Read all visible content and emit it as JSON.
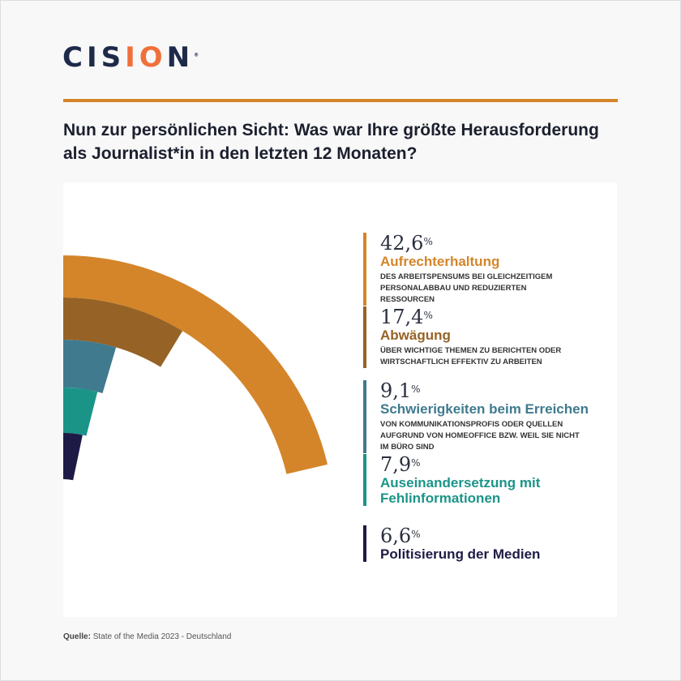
{
  "brand": {
    "logo": "CISION"
  },
  "title": "Nun zur persönlichen Sicht: Was war Ihre größte Herausforderung als Journalist*in in den letzten 12 Monaten?",
  "chart_data": {
    "type": "radial-bar",
    "scale_max_percent": 100,
    "series": [
      {
        "value": 42.6,
        "value_label": "42,6",
        "unit": "%",
        "label": "Aufrechterhaltung",
        "description": "des Arbeitspensums bei gleichzeitigem Personalabbau und reduzierten Ressourcen",
        "color": "#d4852a"
      },
      {
        "value": 17.4,
        "value_label": "17,4",
        "unit": "%",
        "label": "Abwägung",
        "description": "über wichtige Themen zu berichten oder wirtschaftlich effektiv zu arbeiten",
        "color": "#966226"
      },
      {
        "value": 9.1,
        "value_label": "9,1",
        "unit": "%",
        "label": "Schwierigkeiten beim Erreichen",
        "description": "von Kommunikationsprofis oder Quellen aufgrund von Homeoffice bzw. weil sie nicht im Büro sind",
        "color": "#3f7a8e"
      },
      {
        "value": 7.9,
        "value_label": "7,9",
        "unit": "%",
        "label": "Auseinandersetzung mit Fehlinformationen",
        "description": "",
        "color": "#1b9488"
      },
      {
        "value": 6.6,
        "value_label": "6,6",
        "unit": "%",
        "label": "Politisierung der Medien",
        "description": "",
        "color": "#1d1b45"
      }
    ]
  },
  "footer": {
    "source_label": "Quelle:",
    "source_text": "State of the Media 2023 - Deutschland"
  }
}
